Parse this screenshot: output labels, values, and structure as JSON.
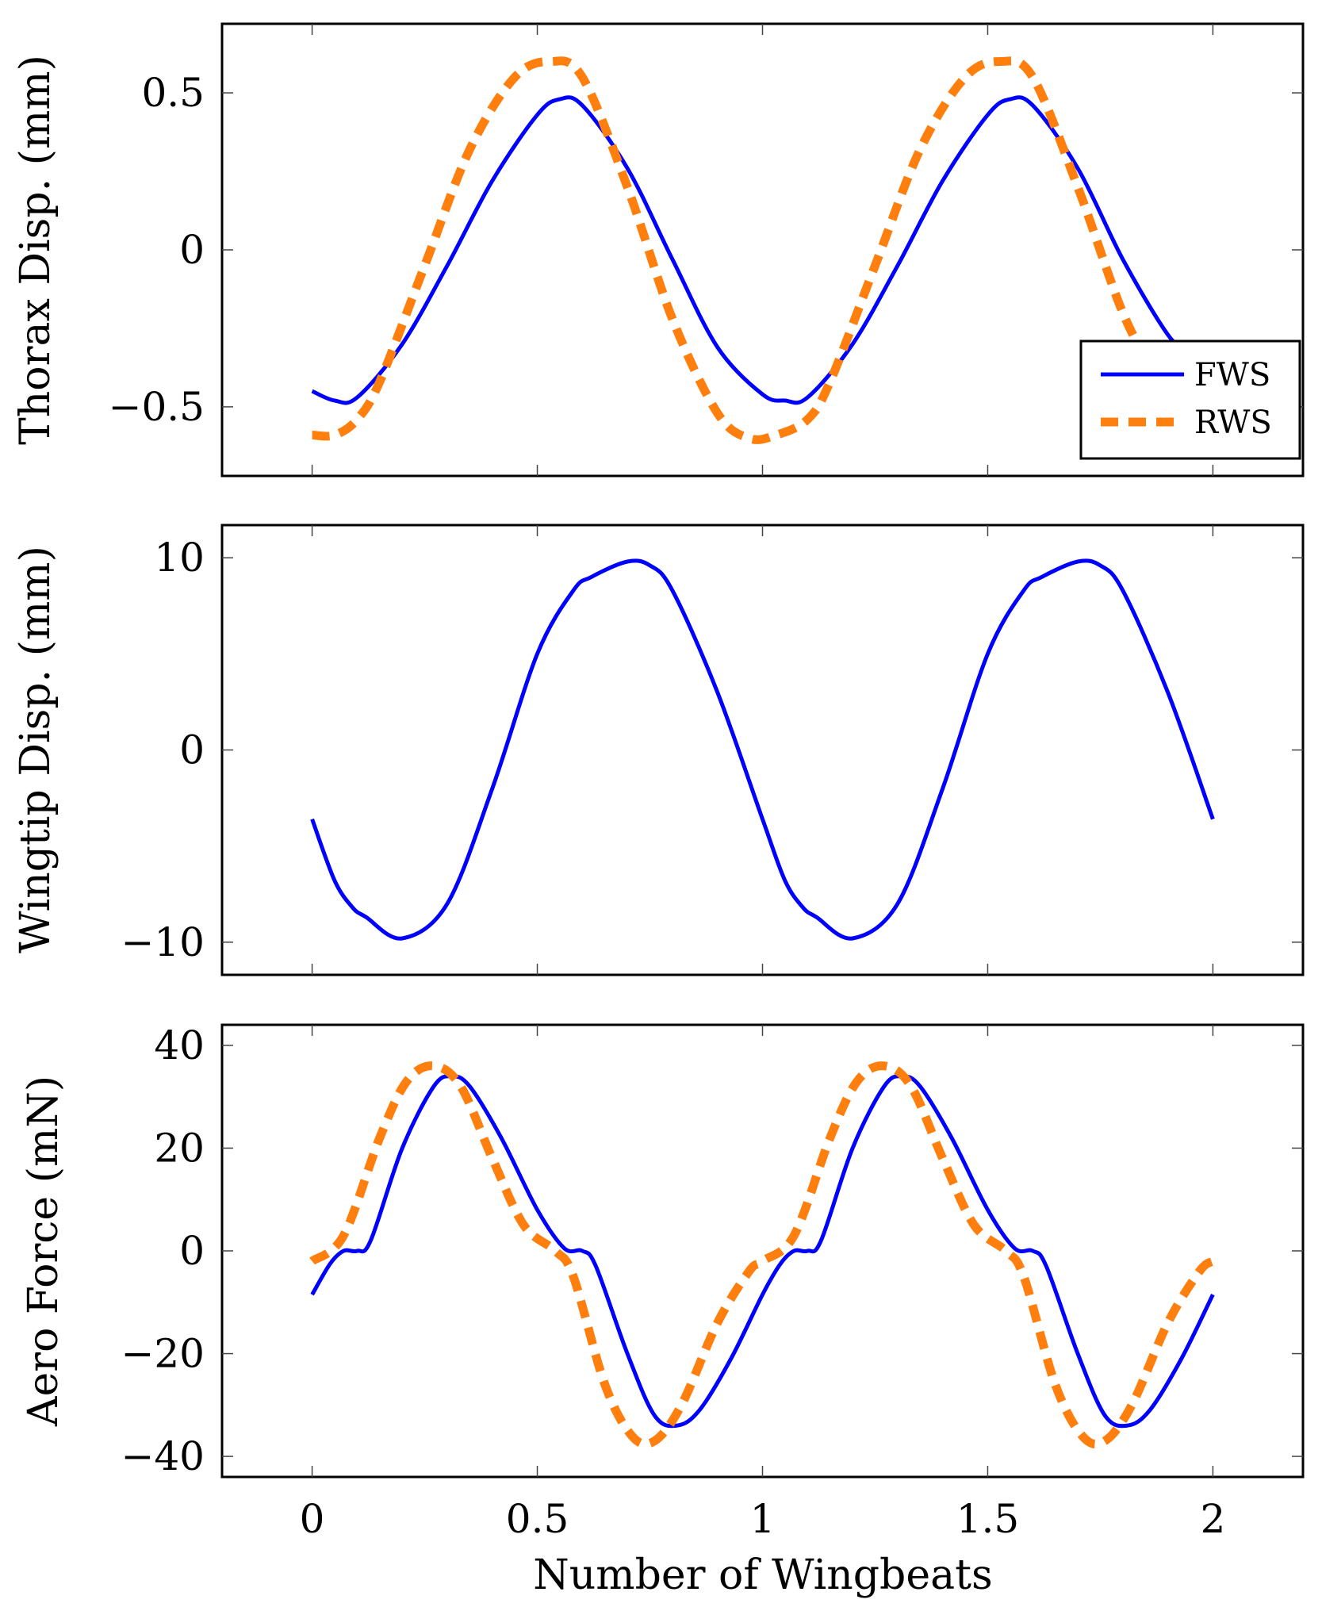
{
  "colors": {
    "fws": "#0000ff",
    "rws": "#ff7f0e"
  },
  "chart_data": [
    {
      "type": "line",
      "id": "thorax",
      "ylabel": "Thorax Disp. (mm)",
      "xlabel": "",
      "xlim": [
        -0.2,
        2.2
      ],
      "ylim": [
        -0.72,
        0.72
      ],
      "xticks": [
        0,
        0.5,
        1,
        1.5,
        2
      ],
      "xtick_labels": [
        "",
        "",
        "",
        "",
        ""
      ],
      "yticks": [
        -0.5,
        0,
        0.5
      ],
      "ytick_labels": [
        "−0.5",
        "0",
        "0.5"
      ],
      "grid": false,
      "legend": {
        "position": "bottom-right",
        "entries": [
          "FWS",
          "RWS"
        ]
      },
      "series": [
        {
          "name": "FWS",
          "color": "#0000ff",
          "style": "solid",
          "x": [
            0,
            0.05,
            0.1,
            0.2,
            0.3,
            0.4,
            0.5,
            0.55,
            0.6,
            0.7,
            0.8,
            0.9,
            1.0,
            1.05,
            1.1,
            1.2,
            1.3,
            1.4,
            1.5,
            1.55,
            1.6,
            1.7,
            1.8,
            1.9,
            1.95
          ],
          "y": [
            -0.45,
            -0.48,
            -0.47,
            -0.3,
            -0.05,
            0.22,
            0.43,
            0.48,
            0.46,
            0.26,
            -0.03,
            -0.31,
            -0.46,
            -0.48,
            -0.47,
            -0.3,
            -0.05,
            0.22,
            0.43,
            0.48,
            0.46,
            0.26,
            -0.03,
            -0.27,
            -0.33
          ]
        },
        {
          "name": "RWS",
          "color": "#ff7f0e",
          "style": "dashed",
          "x": [
            0,
            0.05,
            0.1,
            0.15,
            0.25,
            0.35,
            0.45,
            0.53,
            0.6,
            0.7,
            0.8,
            0.9,
            0.97,
            1.03,
            1.1,
            1.15,
            1.25,
            1.35,
            1.45,
            1.53,
            1.6,
            1.7,
            1.8,
            1.88
          ],
          "y": [
            -0.59,
            -0.59,
            -0.54,
            -0.42,
            -0.05,
            0.32,
            0.55,
            0.6,
            0.55,
            0.2,
            -0.22,
            -0.52,
            -0.6,
            -0.59,
            -0.54,
            -0.42,
            -0.05,
            0.32,
            0.55,
            0.6,
            0.55,
            0.2,
            -0.2,
            -0.42
          ]
        }
      ]
    },
    {
      "type": "line",
      "id": "wingtip",
      "ylabel": "Wingtip Disp. (mm)",
      "xlabel": "",
      "xlim": [
        -0.2,
        2.2
      ],
      "ylim": [
        -11.7,
        11.7
      ],
      "xticks": [
        0,
        0.5,
        1,
        1.5,
        2
      ],
      "xtick_labels": [
        "",
        "",
        "",
        "",
        ""
      ],
      "yticks": [
        -10,
        0,
        10
      ],
      "ytick_labels": [
        "−10",
        "0",
        "10"
      ],
      "grid": false,
      "series": [
        {
          "name": "FWS",
          "color": "#0000ff",
          "style": "solid",
          "x": [
            0,
            0.05,
            0.09,
            0.12,
            0.2,
            0.3,
            0.4,
            0.5,
            0.58,
            0.62,
            0.7,
            0.75,
            0.8,
            0.9,
            1.0,
            1.05,
            1.09,
            1.12,
            1.2,
            1.3,
            1.4,
            1.5,
            1.58,
            1.62,
            1.7,
            1.75,
            1.8,
            1.9,
            2.0
          ],
          "y": [
            -3.6,
            -6.8,
            -8.2,
            -8.7,
            -9.8,
            -8.0,
            -2.0,
            5.0,
            8.3,
            9.0,
            9.8,
            9.6,
            8.3,
            3.0,
            -3.6,
            -6.8,
            -8.2,
            -8.7,
            -9.8,
            -8.0,
            -2.0,
            5.0,
            8.3,
            9.0,
            9.8,
            9.6,
            8.3,
            3.0,
            -3.6
          ]
        }
      ]
    },
    {
      "type": "line",
      "id": "aero",
      "ylabel": "Aero Force (mN)",
      "xlabel": "Number of Wingbeats",
      "xlim": [
        -0.2,
        2.2
      ],
      "ylim": [
        -44,
        44
      ],
      "xticks": [
        0,
        0.5,
        1,
        1.5,
        2
      ],
      "xtick_labels": [
        "0",
        "0.5",
        "1",
        "1.5",
        "2"
      ],
      "yticks": [
        -40,
        -20,
        0,
        20,
        40
      ],
      "ytick_labels": [
        "−40",
        "−20",
        "0",
        "20",
        "40"
      ],
      "grid": false,
      "series": [
        {
          "name": "FWS",
          "color": "#0000ff",
          "style": "solid",
          "x": [
            0,
            0.04,
            0.07,
            0.1,
            0.13,
            0.2,
            0.27,
            0.31,
            0.35,
            0.42,
            0.5,
            0.56,
            0.6,
            0.63,
            0.7,
            0.76,
            0.81,
            0.86,
            0.93,
            1.0,
            1.04,
            1.07,
            1.1,
            1.13,
            1.2,
            1.27,
            1.31,
            1.35,
            1.42,
            1.5,
            1.56,
            1.6,
            1.63,
            1.7,
            1.76,
            1.81,
            1.86,
            1.93,
            2.0
          ],
          "y": [
            -8.5,
            -2.5,
            0,
            0,
            2,
            20,
            32,
            34,
            32,
            22,
            8,
            0.5,
            0,
            -3,
            -20,
            -32,
            -34,
            -31,
            -21,
            -8.5,
            -2.5,
            0,
            0,
            2,
            20,
            32,
            34,
            32,
            22,
            8,
            0.5,
            0,
            -3,
            -20,
            -32,
            -34,
            -31,
            -21,
            -8.5
          ]
        },
        {
          "name": "RWS",
          "color": "#ff7f0e",
          "style": "dashed",
          "x": [
            0,
            0.07,
            0.15,
            0.21,
            0.27,
            0.33,
            0.4,
            0.47,
            0.54,
            0.58,
            0.65,
            0.71,
            0.76,
            0.82,
            0.9,
            0.97,
            1.0,
            1.07,
            1.15,
            1.21,
            1.27,
            1.33,
            1.4,
            1.47,
            1.54,
            1.58,
            1.65,
            1.71,
            1.76,
            1.82,
            1.9,
            1.97,
            2.0
          ],
          "y": [
            -2,
            3,
            22,
            33,
            36,
            32,
            18,
            5,
            0,
            -5,
            -26,
            -36,
            -37,
            -30,
            -14,
            -4,
            -2,
            3,
            22,
            33,
            36,
            32,
            18,
            5,
            0,
            -5,
            -26,
            -36,
            -37,
            -30,
            -14,
            -4,
            -2
          ]
        }
      ]
    }
  ]
}
